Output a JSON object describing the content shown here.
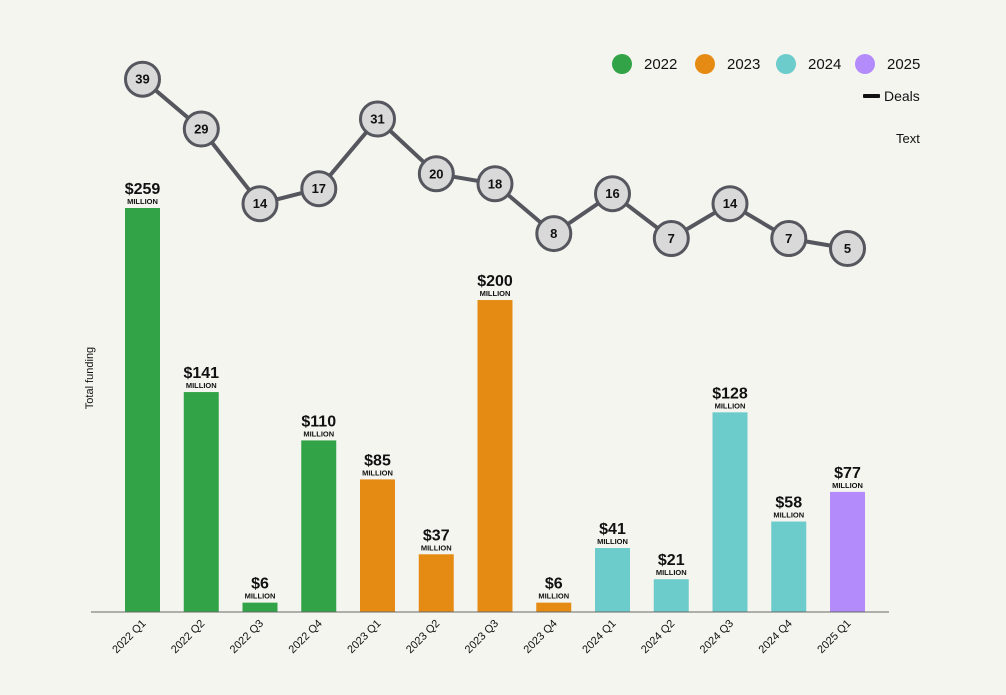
{
  "chart_data": {
    "type": "bar",
    "ylabel": "Total funding",
    "categories": [
      "2022 Q1",
      "2022 Q2",
      "2022 Q3",
      "2022 Q4",
      "2023 Q1",
      "2023 Q2",
      "2023 Q3",
      "2023 Q4",
      "2024 Q1",
      "2024 Q2",
      "2024 Q3",
      "2024 Q4",
      "2025 Q1"
    ],
    "values": [
      259,
      141,
      6,
      110,
      85,
      37,
      200,
      6,
      41,
      21,
      128,
      58,
      77
    ],
    "value_labels": [
      "$259",
      "$141",
      "$6",
      "$110",
      "$85",
      "$37",
      "$200",
      "$6",
      "$41",
      "$21",
      "$128",
      "$58",
      "$77"
    ],
    "unit_label": "MILLION",
    "deals": {
      "name": "Deals",
      "values": [
        39,
        29,
        14,
        17,
        31,
        20,
        18,
        8,
        16,
        7,
        14,
        7,
        5
      ]
    },
    "years": [
      "2022",
      "2022",
      "2022",
      "2022",
      "2023",
      "2023",
      "2023",
      "2023",
      "2024",
      "2024",
      "2024",
      "2024",
      "2025"
    ],
    "legend": [
      {
        "label": "2022",
        "color": "#32a447"
      },
      {
        "label": "2023",
        "color": "#e58b14"
      },
      {
        "label": "2024",
        "color": "#6ccbcb"
      },
      {
        "label": "2025",
        "color": "#b38bfa"
      }
    ],
    "legend_position": "top-right",
    "annotation": "Text",
    "grid": false
  }
}
